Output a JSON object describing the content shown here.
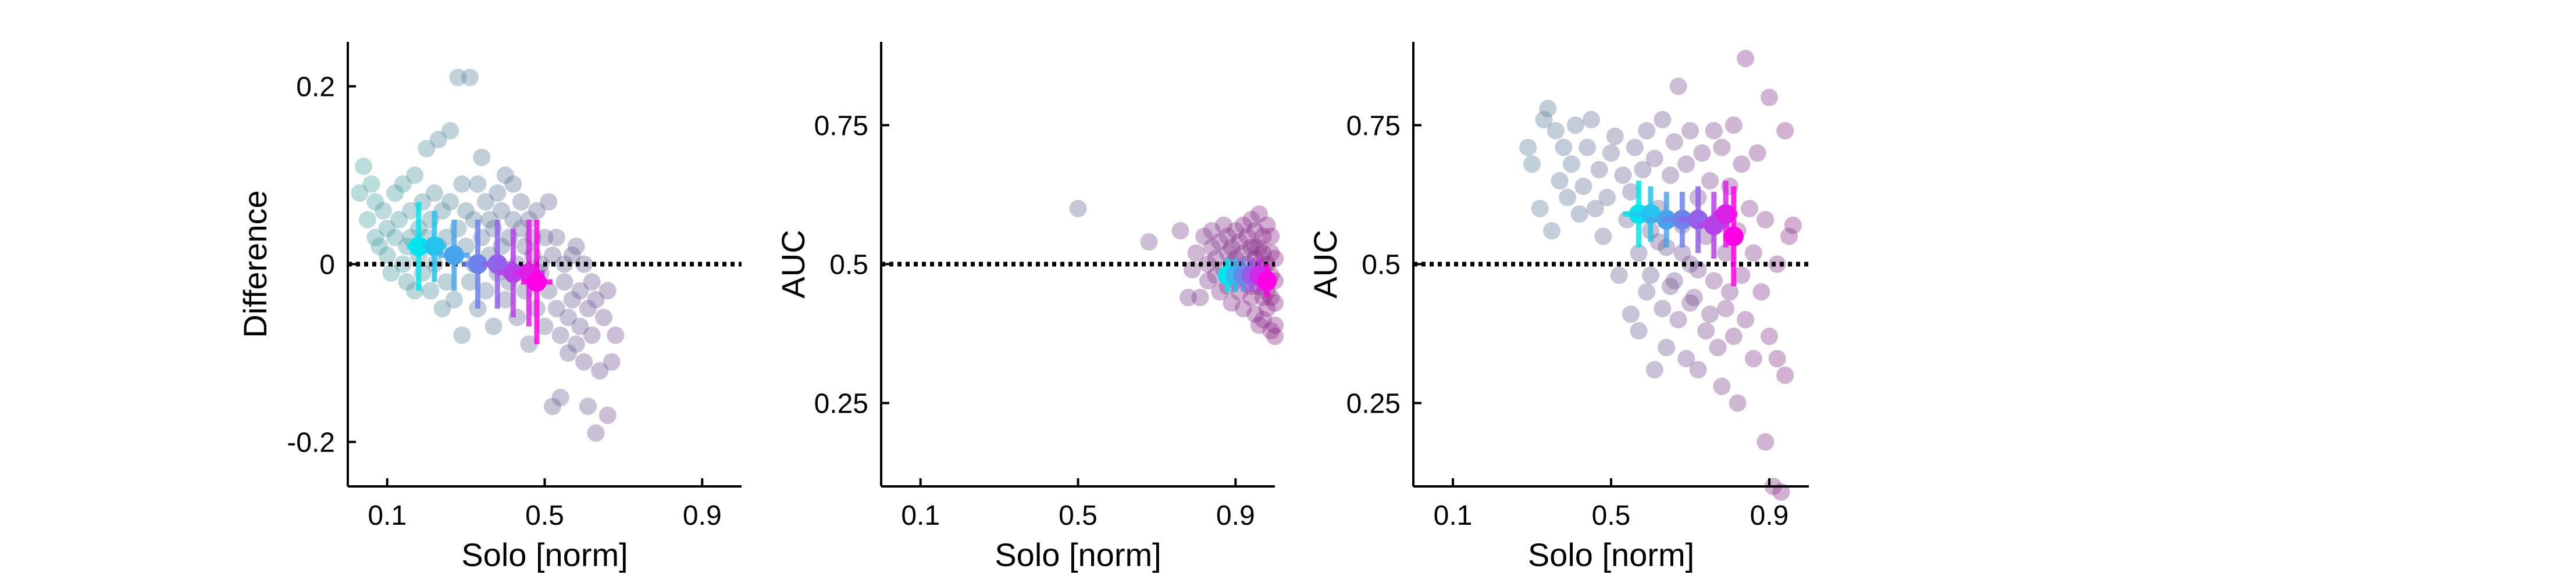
{
  "chart_data": [
    {
      "type": "scatter",
      "xlabel": "Solo [norm]",
      "ylabel": "Difference",
      "xticks": [
        0.1,
        0.5,
        0.9
      ],
      "xtick_labels": [
        "0.1",
        "0.5",
        "0.9"
      ],
      "yticks": [
        -0.2,
        0,
        0.2
      ],
      "ytick_labels": [
        "-0.2",
        "0",
        "0.2"
      ],
      "xlim": [
        0,
        1
      ],
      "ylim": [
        -0.25,
        0.25
      ],
      "reference_line_y": 0,
      "colors": {
        "start": "#4aa6a3",
        "end": "#8e2a8a",
        "summary_start": "#00e5f0",
        "summary_end": "#ff00e6"
      },
      "points": [
        [
          0.03,
          0.08
        ],
        [
          0.04,
          0.11
        ],
        [
          0.05,
          0.05
        ],
        [
          0.06,
          0.09
        ],
        [
          0.07,
          0.03
        ],
        [
          0.07,
          0.07
        ],
        [
          0.08,
          0.02
        ],
        [
          0.09,
          0.06
        ],
        [
          0.1,
          0.01
        ],
        [
          0.1,
          0.04
        ],
        [
          0.11,
          -0.01
        ],
        [
          0.12,
          0.08
        ],
        [
          0.12,
          0.03
        ],
        [
          0.13,
          0.05
        ],
        [
          0.14,
          0.0
        ],
        [
          0.14,
          0.09
        ],
        [
          0.15,
          0.02
        ],
        [
          0.15,
          -0.02
        ],
        [
          0.16,
          0.06
        ],
        [
          0.16,
          0.03
        ],
        [
          0.17,
          -0.03
        ],
        [
          0.17,
          0.1
        ],
        [
          0.18,
          0.04
        ],
        [
          0.18,
          0.01
        ],
        [
          0.19,
          0.07
        ],
        [
          0.19,
          -0.01
        ],
        [
          0.2,
          0.03
        ],
        [
          0.2,
          0.13
        ],
        [
          0.21,
          0.05
        ],
        [
          0.21,
          -0.03
        ],
        [
          0.22,
          0.0
        ],
        [
          0.22,
          0.08
        ],
        [
          0.23,
          0.14
        ],
        [
          0.23,
          0.02
        ],
        [
          0.24,
          -0.05
        ],
        [
          0.24,
          0.06
        ],
        [
          0.25,
          0.03
        ],
        [
          0.25,
          -0.02
        ],
        [
          0.26,
          0.15
        ],
        [
          0.26,
          0.07
        ],
        [
          0.27,
          0.01
        ],
        [
          0.27,
          -0.04
        ],
        [
          0.28,
          0.04
        ],
        [
          0.28,
          0.21
        ],
        [
          0.29,
          0.09
        ],
        [
          0.29,
          -0.08
        ],
        [
          0.3,
          0.02
        ],
        [
          0.3,
          0.06
        ],
        [
          0.31,
          -0.02
        ],
        [
          0.31,
          0.21
        ],
        [
          0.32,
          0.05
        ],
        [
          0.32,
          0.0
        ],
        [
          0.33,
          0.09
        ],
        [
          0.33,
          -0.05
        ],
        [
          0.34,
          0.03
        ],
        [
          0.34,
          0.12
        ],
        [
          0.35,
          0.07
        ],
        [
          0.35,
          -0.03
        ],
        [
          0.36,
          0.01
        ],
        [
          0.36,
          0.05
        ],
        [
          0.37,
          -0.07
        ],
        [
          0.37,
          0.04
        ],
        [
          0.38,
          0.08
        ],
        [
          0.38,
          -0.01
        ],
        [
          0.39,
          0.02
        ],
        [
          0.39,
          0.06
        ],
        [
          0.4,
          -0.04
        ],
        [
          0.4,
          0.1
        ],
        [
          0.41,
          0.03
        ],
        [
          0.41,
          -0.02
        ],
        [
          0.42,
          0.09
        ],
        [
          0.42,
          0.05
        ],
        [
          0.43,
          0.0
        ],
        [
          0.43,
          -0.06
        ],
        [
          0.44,
          0.04
        ],
        [
          0.44,
          0.07
        ],
        [
          0.45,
          -0.03
        ],
        [
          0.45,
          0.02
        ],
        [
          0.46,
          0.05
        ],
        [
          0.46,
          -0.09
        ],
        [
          0.47,
          0.01
        ],
        [
          0.47,
          0.03
        ],
        [
          0.48,
          -0.05
        ],
        [
          0.48,
          0.06
        ],
        [
          0.49,
          -0.01
        ],
        [
          0.49,
          0.0
        ],
        [
          0.5,
          0.03
        ],
        [
          0.5,
          -0.07
        ],
        [
          0.51,
          0.07
        ],
        [
          0.51,
          -0.03
        ],
        [
          0.52,
          -0.16
        ],
        [
          0.52,
          0.01
        ],
        [
          0.53,
          -0.05
        ],
        [
          0.53,
          0.03
        ],
        [
          0.54,
          -0.08
        ],
        [
          0.54,
          -0.15
        ],
        [
          0.55,
          0.0
        ],
        [
          0.55,
          -0.02
        ],
        [
          0.56,
          -0.06
        ],
        [
          0.56,
          -0.1
        ],
        [
          0.57,
          0.01
        ],
        [
          0.57,
          -0.04
        ],
        [
          0.58,
          -0.09
        ],
        [
          0.58,
          0.02
        ],
        [
          0.59,
          -0.03
        ],
        [
          0.59,
          -0.07
        ],
        [
          0.6,
          -0.11
        ],
        [
          0.6,
          0.0
        ],
        [
          0.61,
          -0.05
        ],
        [
          0.61,
          -0.16
        ],
        [
          0.62,
          -0.02
        ],
        [
          0.62,
          -0.08
        ],
        [
          0.63,
          -0.19
        ],
        [
          0.63,
          -0.04
        ],
        [
          0.64,
          -0.12
        ],
        [
          0.65,
          -0.06
        ],
        [
          0.66,
          -0.17
        ],
        [
          0.66,
          -0.03
        ],
        [
          0.67,
          -0.11
        ],
        [
          0.68,
          -0.08
        ]
      ],
      "summary": [
        {
          "x": 0.18,
          "y": 0.02,
          "xerr": 0.03,
          "yerr": 0.05
        },
        {
          "x": 0.22,
          "y": 0.02,
          "xerr": 0.03,
          "yerr": 0.04
        },
        {
          "x": 0.27,
          "y": 0.01,
          "xerr": 0.04,
          "yerr": 0.04
        },
        {
          "x": 0.33,
          "y": 0.0,
          "xerr": 0.04,
          "yerr": 0.05
        },
        {
          "x": 0.38,
          "y": 0.0,
          "xerr": 0.04,
          "yerr": 0.05
        },
        {
          "x": 0.42,
          "y": -0.01,
          "xerr": 0.04,
          "yerr": 0.05
        },
        {
          "x": 0.46,
          "y": -0.01,
          "xerr": 0.04,
          "yerr": 0.06
        },
        {
          "x": 0.48,
          "y": -0.02,
          "xerr": 0.04,
          "yerr": 0.07
        }
      ]
    },
    {
      "type": "scatter",
      "xlabel": "Solo [norm]",
      "ylabel": "AUC",
      "xticks": [
        0.1,
        0.5,
        0.9
      ],
      "xtick_labels": [
        "0.1",
        "0.5",
        "0.9"
      ],
      "yticks": [
        0.25,
        0.5,
        0.75
      ],
      "ytick_labels": [
        "0.25",
        "0.5",
        "0.75"
      ],
      "xlim": [
        0,
        1
      ],
      "ylim": [
        0.1,
        0.9
      ],
      "reference_line_y": 0.5,
      "colors": {
        "start": "#4aa6a3",
        "end": "#8e2a8a",
        "summary_start": "#00e5f0",
        "summary_end": "#ff00e6"
      },
      "points": [
        [
          0.5,
          0.6
        ],
        [
          0.68,
          0.54
        ],
        [
          0.76,
          0.56
        ],
        [
          0.78,
          0.44
        ],
        [
          0.79,
          0.49
        ],
        [
          0.8,
          0.52
        ],
        [
          0.81,
          0.44
        ],
        [
          0.82,
          0.55
        ],
        [
          0.83,
          0.5
        ],
        [
          0.83,
          0.47
        ],
        [
          0.84,
          0.53
        ],
        [
          0.84,
          0.56
        ],
        [
          0.85,
          0.48
        ],
        [
          0.85,
          0.51
        ],
        [
          0.86,
          0.45
        ],
        [
          0.86,
          0.54
        ],
        [
          0.87,
          0.57
        ],
        [
          0.87,
          0.49
        ],
        [
          0.88,
          0.52
        ],
        [
          0.88,
          0.46
        ],
        [
          0.88,
          0.55
        ],
        [
          0.89,
          0.5
        ],
        [
          0.89,
          0.43
        ],
        [
          0.89,
          0.53
        ],
        [
          0.9,
          0.47
        ],
        [
          0.9,
          0.56
        ],
        [
          0.9,
          0.51
        ],
        [
          0.91,
          0.45
        ],
        [
          0.91,
          0.54
        ],
        [
          0.91,
          0.49
        ],
        [
          0.92,
          0.42
        ],
        [
          0.92,
          0.57
        ],
        [
          0.92,
          0.52
        ],
        [
          0.93,
          0.47
        ],
        [
          0.93,
          0.55
        ],
        [
          0.93,
          0.5
        ],
        [
          0.94,
          0.44
        ],
        [
          0.94,
          0.53
        ],
        [
          0.94,
          0.58
        ],
        [
          0.95,
          0.48
        ],
        [
          0.95,
          0.51
        ],
        [
          0.95,
          0.41
        ],
        [
          0.95,
          0.56
        ],
        [
          0.96,
          0.46
        ],
        [
          0.96,
          0.53
        ],
        [
          0.96,
          0.39
        ],
        [
          0.96,
          0.59
        ],
        [
          0.97,
          0.49
        ],
        [
          0.97,
          0.44
        ],
        [
          0.97,
          0.55
        ],
        [
          0.97,
          0.4
        ],
        [
          0.98,
          0.5
        ],
        [
          0.98,
          0.45
        ],
        [
          0.98,
          0.57
        ],
        [
          0.98,
          0.42
        ],
        [
          0.99,
          0.48
        ],
        [
          0.99,
          0.52
        ],
        [
          0.99,
          0.38
        ],
        [
          0.99,
          0.55
        ],
        [
          1.0,
          0.47
        ],
        [
          1.0,
          0.43
        ],
        [
          1.0,
          0.51
        ],
        [
          1.0,
          0.39
        ],
        [
          1.0,
          0.37
        ],
        [
          0.97,
          0.52
        ],
        [
          0.96,
          0.5
        ],
        [
          0.98,
          0.47
        ],
        [
          0.99,
          0.44
        ],
        [
          0.95,
          0.53
        ],
        [
          0.94,
          0.46
        ]
      ],
      "summary": [
        {
          "x": 0.88,
          "y": 0.48,
          "xerr": 0.02,
          "yerr": 0.03
        },
        {
          "x": 0.9,
          "y": 0.48,
          "xerr": 0.02,
          "yerr": 0.03
        },
        {
          "x": 0.92,
          "y": 0.48,
          "xerr": 0.02,
          "yerr": 0.03
        },
        {
          "x": 0.94,
          "y": 0.48,
          "xerr": 0.02,
          "yerr": 0.03
        },
        {
          "x": 0.96,
          "y": 0.48,
          "xerr": 0.02,
          "yerr": 0.03
        },
        {
          "x": 0.98,
          "y": 0.47,
          "xerr": 0.02,
          "yerr": 0.03
        }
      ]
    },
    {
      "type": "scatter",
      "xlabel": "Solo [norm]",
      "ylabel": "AUC",
      "xticks": [
        0.1,
        0.5,
        0.9
      ],
      "xtick_labels": [
        "0.1",
        "0.5",
        "0.9"
      ],
      "yticks": [
        0.25,
        0.5,
        0.75
      ],
      "ytick_labels": [
        "0.25",
        "0.5",
        "0.75"
      ],
      "xlim": [
        0,
        1
      ],
      "ylim": [
        0.1,
        0.9
      ],
      "reference_line_y": 0.5,
      "colors": {
        "start": "#4aa6a3",
        "end": "#8e2a8a",
        "summary_start": "#00e5f0",
        "summary_end": "#ff00e6"
      },
      "points": [
        [
          0.29,
          0.71
        ],
        [
          0.3,
          0.68
        ],
        [
          0.32,
          0.6
        ],
        [
          0.33,
          0.76
        ],
        [
          0.34,
          0.78
        ],
        [
          0.35,
          0.56
        ],
        [
          0.36,
          0.74
        ],
        [
          0.37,
          0.65
        ],
        [
          0.38,
          0.71
        ],
        [
          0.39,
          0.62
        ],
        [
          0.4,
          0.68
        ],
        [
          0.41,
          0.75
        ],
        [
          0.42,
          0.59
        ],
        [
          0.43,
          0.64
        ],
        [
          0.44,
          0.71
        ],
        [
          0.45,
          0.76
        ],
        [
          0.46,
          0.6
        ],
        [
          0.47,
          0.67
        ],
        [
          0.48,
          0.55
        ],
        [
          0.49,
          0.62
        ],
        [
          0.5,
          0.7
        ],
        [
          0.51,
          0.73
        ],
        [
          0.52,
          0.48
        ],
        [
          0.53,
          0.66
        ],
        [
          0.54,
          0.58
        ],
        [
          0.55,
          0.41
        ],
        [
          0.55,
          0.63
        ],
        [
          0.56,
          0.71
        ],
        [
          0.57,
          0.38
        ],
        [
          0.57,
          0.52
        ],
        [
          0.58,
          0.67
        ],
        [
          0.59,
          0.45
        ],
        [
          0.59,
          0.74
        ],
        [
          0.6,
          0.56
        ],
        [
          0.61,
          0.31
        ],
        [
          0.61,
          0.69
        ],
        [
          0.62,
          0.6
        ],
        [
          0.63,
          0.42
        ],
        [
          0.63,
          0.76
        ],
        [
          0.64,
          0.53
        ],
        [
          0.64,
          0.35
        ],
        [
          0.65,
          0.66
        ],
        [
          0.66,
          0.47
        ],
        [
          0.66,
          0.72
        ],
        [
          0.67,
          0.4
        ],
        [
          0.67,
          0.82
        ],
        [
          0.68,
          0.57
        ],
        [
          0.69,
          0.33
        ],
        [
          0.69,
          0.68
        ],
        [
          0.7,
          0.5
        ],
        [
          0.7,
          0.74
        ],
        [
          0.71,
          0.44
        ],
        [
          0.72,
          0.62
        ],
        [
          0.72,
          0.31
        ],
        [
          0.73,
          0.7
        ],
        [
          0.74,
          0.55
        ],
        [
          0.74,
          0.38
        ],
        [
          0.75,
          0.65
        ],
        [
          0.76,
          0.47
        ],
        [
          0.76,
          0.74
        ],
        [
          0.77,
          0.35
        ],
        [
          0.77,
          0.58
        ],
        [
          0.78,
          0.28
        ],
        [
          0.78,
          0.71
        ],
        [
          0.79,
          0.52
        ],
        [
          0.79,
          0.42
        ],
        [
          0.8,
          0.64
        ],
        [
          0.81,
          0.37
        ],
        [
          0.81,
          0.75
        ],
        [
          0.82,
          0.56
        ],
        [
          0.82,
          0.25
        ],
        [
          0.83,
          0.48
        ],
        [
          0.83,
          0.68
        ],
        [
          0.84,
          0.87
        ],
        [
          0.84,
          0.4
        ],
        [
          0.85,
          0.6
        ],
        [
          0.86,
          0.33
        ],
        [
          0.86,
          0.52
        ],
        [
          0.87,
          0.7
        ],
        [
          0.88,
          0.45
        ],
        [
          0.89,
          0.18
        ],
        [
          0.89,
          0.58
        ],
        [
          0.9,
          0.8
        ],
        [
          0.9,
          0.37
        ],
        [
          0.91,
          0.1
        ],
        [
          0.92,
          0.5
        ],
        [
          0.92,
          0.33
        ],
        [
          0.93,
          0.09
        ],
        [
          0.94,
          0.74
        ],
        [
          0.94,
          0.3
        ],
        [
          0.95,
          0.55
        ],
        [
          0.96,
          0.57
        ],
        [
          0.6,
          0.48
        ],
        [
          0.65,
          0.46
        ],
        [
          0.7,
          0.43
        ],
        [
          0.75,
          0.41
        ],
        [
          0.8,
          0.45
        ],
        [
          0.72,
          0.49
        ],
        [
          0.68,
          0.52
        ],
        [
          0.62,
          0.54
        ]
      ],
      "summary": [
        {
          "x": 0.57,
          "y": 0.59,
          "xerr": 0.04,
          "yerr": 0.06
        },
        {
          "x": 0.6,
          "y": 0.59,
          "xerr": 0.05,
          "yerr": 0.05
        },
        {
          "x": 0.64,
          "y": 0.58,
          "xerr": 0.05,
          "yerr": 0.05
        },
        {
          "x": 0.68,
          "y": 0.58,
          "xerr": 0.05,
          "yerr": 0.05
        },
        {
          "x": 0.72,
          "y": 0.58,
          "xerr": 0.05,
          "yerr": 0.06
        },
        {
          "x": 0.76,
          "y": 0.57,
          "xerr": 0.04,
          "yerr": 0.06
        },
        {
          "x": 0.79,
          "y": 0.59,
          "xerr": 0.03,
          "yerr": 0.06
        },
        {
          "x": 0.81,
          "y": 0.55,
          "xerr": 0.02,
          "yerr": 0.09
        }
      ]
    }
  ]
}
